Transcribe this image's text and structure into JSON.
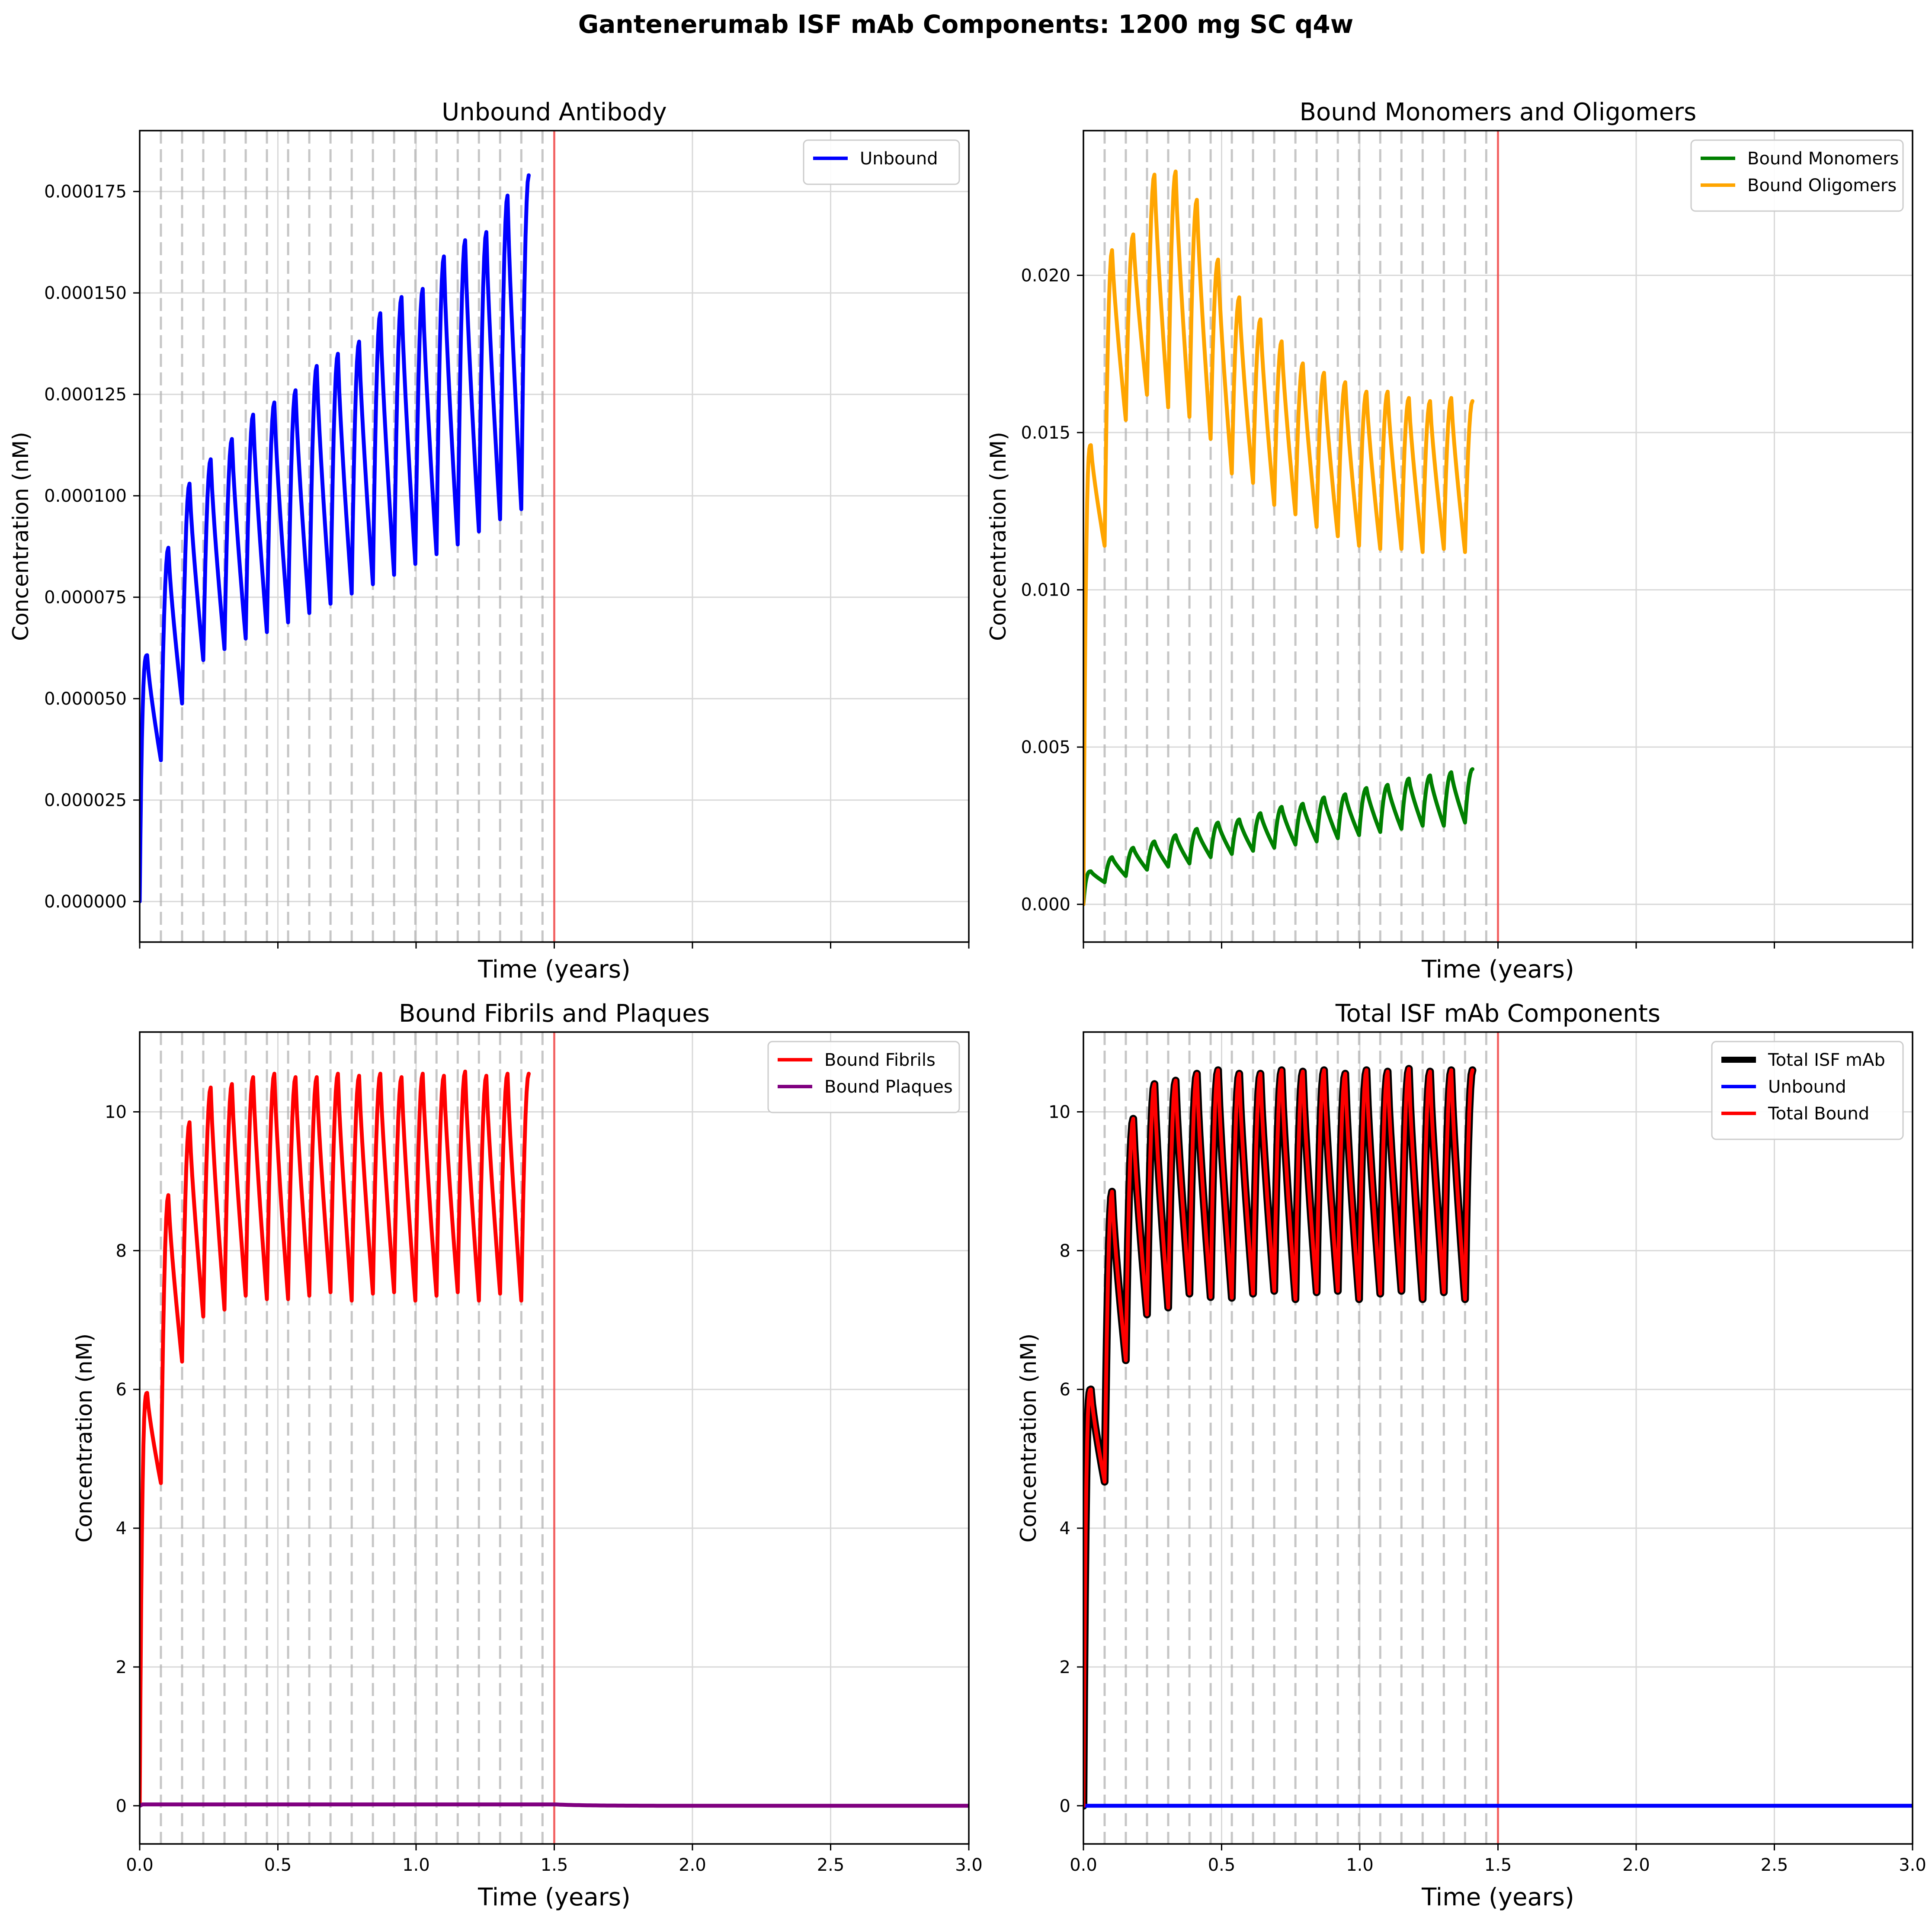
{
  "figure": {
    "title": "Gantenerumab ISF mAb Components: 1200 mg SC q4w"
  },
  "chart_data": [
    {
      "type": "line",
      "title": "Unbound Antibody",
      "xlabel": "Time (years)",
      "ylabel": "Concentration (nM)",
      "xlim": [
        0,
        3
      ],
      "ylim": [
        -1e-05,
        0.00019
      ],
      "x_ticks": [
        0,
        0.5,
        1.0,
        1.5,
        2.0,
        2.5,
        3.0
      ],
      "x_tick_labels": [],
      "y_ticks": [
        0,
        2.5e-05,
        5e-05,
        7.5e-05,
        0.0001,
        0.000125,
        0.00015,
        0.000175
      ],
      "y_tick_labels": [
        "0.000000",
        "0.000025",
        "0.000050",
        "0.000075",
        "0.000100",
        "0.000125",
        "0.000150",
        "0.000175"
      ],
      "grid": true,
      "legend_position": "top-right",
      "dose_times_years": [
        0.0767,
        0.1534,
        0.2301,
        0.3068,
        0.3836,
        0.4603,
        0.537,
        0.6137,
        0.6904,
        0.7671,
        0.8438,
        0.9205,
        0.9973,
        1.074,
        1.1507,
        1.2274,
        1.3041,
        1.3808,
        1.4575
      ],
      "treatment_end_year": 1.5,
      "series": [
        {
          "name": "Unbound",
          "color": "#0000ff",
          "kind": "pk",
          "trough": [
            3.48e-05,
            4.88e-05,
            5.95e-05,
            6.22e-05,
            6.48e-05,
            6.64e-05,
            6.88e-05,
            7.11e-05,
            7.34e-05,
            7.59e-05,
            7.82e-05,
            8.05e-05,
            8.32e-05,
            8.56e-05,
            8.8e-05,
            9.12e-05,
            9.42e-05,
            9.67e-05
          ],
          "peak": [
            8.72e-05,
            0.000103,
            0.000109,
            0.000114,
            0.00012,
            0.000123,
            0.000126,
            0.000132,
            0.000135,
            0.000138,
            0.000145,
            0.000149,
            0.000151,
            0.000159,
            0.000163,
            0.000165,
            0.000174,
            0.000179
          ],
          "first_peak": 6.07e-05,
          "end_peak": 0.000182,
          "initial": 0,
          "final": 0,
          "decay_rate": 10.5
        }
      ]
    },
    {
      "type": "line",
      "title": "Bound Monomers and Oligomers",
      "xlabel": "Time (years)",
      "ylabel": "Concentration (nM)",
      "xlim": [
        0,
        3
      ],
      "ylim": [
        -0.0012,
        0.0246
      ],
      "x_ticks": [
        0,
        0.5,
        1.0,
        1.5,
        2.0,
        2.5,
        3.0
      ],
      "x_tick_labels": [],
      "y_ticks": [
        0,
        0.005,
        0.01,
        0.015,
        0.02
      ],
      "y_tick_labels": [
        "0.000",
        "0.005",
        "0.010",
        "0.015",
        "0.020"
      ],
      "grid": true,
      "legend_position": "top-right",
      "dose_times_years": [
        0.0767,
        0.1534,
        0.2301,
        0.3068,
        0.3836,
        0.4603,
        0.537,
        0.6137,
        0.6904,
        0.7671,
        0.8438,
        0.9205,
        0.9973,
        1.074,
        1.1507,
        1.2274,
        1.3041,
        1.3808,
        1.4575
      ],
      "treatment_end_year": 1.5,
      "series": [
        {
          "name": "Bound Monomers",
          "color": "#008000",
          "kind": "pk",
          "trough": [
            0.0007,
            0.0009,
            0.0011,
            0.0012,
            0.0013,
            0.0015,
            0.0016,
            0.0017,
            0.0018,
            0.0019,
            0.002,
            0.0021,
            0.0022,
            0.0023,
            0.0024,
            0.0025,
            0.0025,
            0.0026
          ],
          "peak": [
            0.0015,
            0.0018,
            0.002,
            0.0022,
            0.0024,
            0.0026,
            0.0027,
            0.0029,
            0.0031,
            0.0032,
            0.0034,
            0.0035,
            0.0037,
            0.0038,
            0.004,
            0.0041,
            0.0042,
            0.0043
          ],
          "first_peak": 0.00105,
          "end_peak": 0.0044,
          "initial": 0,
          "final": 0,
          "decay_rate": 8.5
        },
        {
          "name": "Bound Oligomers",
          "color": "#ffa500",
          "kind": "pk",
          "trough": [
            0.0114,
            0.0154,
            0.0162,
            0.0158,
            0.0155,
            0.0148,
            0.0137,
            0.0134,
            0.0127,
            0.0124,
            0.012,
            0.0117,
            0.0114,
            0.0113,
            0.0113,
            0.0112,
            0.0113,
            0.0112
          ],
          "peak": [
            0.0208,
            0.0213,
            0.0232,
            0.0233,
            0.0224,
            0.0205,
            0.0193,
            0.0186,
            0.0179,
            0.0172,
            0.0169,
            0.0166,
            0.0163,
            0.0163,
            0.0161,
            0.016,
            0.0161,
            0.016
          ],
          "first_peak": 0.0146,
          "end_peak": 0.0162,
          "initial": 0,
          "final": 0,
          "decay_rate": 9.0
        }
      ]
    },
    {
      "type": "line",
      "title": "Bound Fibrils and Plaques",
      "xlabel": "Time (years)",
      "ylabel": "Concentration (nM)",
      "xlim": [
        0,
        3
      ],
      "ylim": [
        -0.55,
        11.15
      ],
      "x_ticks": [
        0,
        0.5,
        1.0,
        1.5,
        2.0,
        2.5,
        3.0
      ],
      "x_tick_labels": [
        "0.0",
        "0.5",
        "1.0",
        "1.5",
        "2.0",
        "2.5",
        "3.0"
      ],
      "y_ticks": [
        0,
        2,
        4,
        6,
        8,
        10
      ],
      "y_tick_labels": [
        "0",
        "2",
        "4",
        "6",
        "8",
        "10"
      ],
      "grid": true,
      "legend_position": "top-right",
      "dose_times_years": [
        0.0767,
        0.1534,
        0.2301,
        0.3068,
        0.3836,
        0.4603,
        0.537,
        0.6137,
        0.6904,
        0.7671,
        0.8438,
        0.9205,
        0.9973,
        1.074,
        1.1507,
        1.2274,
        1.3041,
        1.3808,
        1.4575
      ],
      "treatment_end_year": 1.5,
      "series": [
        {
          "name": "Bound Fibrils",
          "color": "#ff0000",
          "kind": "pk",
          "trough": [
            4.65,
            6.4,
            7.05,
            7.15,
            7.35,
            7.3,
            7.3,
            7.35,
            7.4,
            7.28,
            7.38,
            7.4,
            7.28,
            7.35,
            7.4,
            7.28,
            7.38,
            7.28
          ],
          "peak": [
            8.8,
            9.85,
            10.35,
            10.4,
            10.5,
            10.55,
            10.5,
            10.5,
            10.55,
            10.52,
            10.55,
            10.5,
            10.55,
            10.52,
            10.58,
            10.52,
            10.55,
            10.55
          ],
          "first_peak": 5.95,
          "end_peak": 10.55,
          "initial": 0,
          "final": 0,
          "decay_rate": 9.0
        },
        {
          "name": "Bound Plaques",
          "color": "#800080",
          "kind": "flat",
          "level": 0.02,
          "initial": 0,
          "final": 0,
          "decay_rate": 9.0
        }
      ]
    },
    {
      "type": "line",
      "title": "Total ISF mAb Components",
      "xlabel": "Time (years)",
      "ylabel": "Concentration (nM)",
      "xlim": [
        0,
        3
      ],
      "ylim": [
        -0.55,
        11.15
      ],
      "x_ticks": [
        0,
        0.5,
        1.0,
        1.5,
        2.0,
        2.5,
        3.0
      ],
      "x_tick_labels": [
        "0.0",
        "0.5",
        "1.0",
        "1.5",
        "2.0",
        "2.5",
        "3.0"
      ],
      "y_ticks": [
        0,
        2,
        4,
        6,
        8,
        10
      ],
      "y_tick_labels": [
        "0",
        "2",
        "4",
        "6",
        "8",
        "10"
      ],
      "grid": true,
      "legend_position": "top-right",
      "dose_times_years": [
        0.0767,
        0.1534,
        0.2301,
        0.3068,
        0.3836,
        0.4603,
        0.537,
        0.6137,
        0.6904,
        0.7671,
        0.8438,
        0.9205,
        0.9973,
        1.074,
        1.1507,
        1.2274,
        1.3041,
        1.3808,
        1.4575
      ],
      "treatment_end_year": 1.5,
      "series": [
        {
          "name": "Total ISF mAb",
          "color": "#000000",
          "kind": "pk",
          "emphasis": "thick",
          "trough": [
            4.67,
            6.42,
            7.08,
            7.18,
            7.38,
            7.33,
            7.32,
            7.38,
            7.42,
            7.3,
            7.4,
            7.42,
            7.3,
            7.38,
            7.42,
            7.3,
            7.4,
            7.3
          ],
          "peak": [
            8.85,
            9.9,
            10.4,
            10.45,
            10.55,
            10.6,
            10.55,
            10.55,
            10.6,
            10.58,
            10.6,
            10.55,
            10.6,
            10.58,
            10.62,
            10.58,
            10.6,
            10.6
          ],
          "first_peak": 6.0,
          "end_peak": 10.6,
          "initial": 0,
          "final": 0,
          "decay_rate": 9.0
        },
        {
          "name": "Unbound",
          "color": "#0000ff",
          "kind": "flat",
          "level": 0.0,
          "initial": 0,
          "final": 0,
          "decay_rate": 9.0
        },
        {
          "name": "Total Bound",
          "color": "#ff0000",
          "kind": "pk",
          "trough": [
            4.67,
            6.42,
            7.08,
            7.18,
            7.38,
            7.33,
            7.32,
            7.38,
            7.42,
            7.3,
            7.4,
            7.42,
            7.3,
            7.38,
            7.42,
            7.3,
            7.4,
            7.3
          ],
          "peak": [
            8.85,
            9.9,
            10.4,
            10.45,
            10.55,
            10.6,
            10.55,
            10.55,
            10.6,
            10.58,
            10.6,
            10.55,
            10.6,
            10.58,
            10.62,
            10.58,
            10.6,
            10.6
          ],
          "first_peak": 6.0,
          "end_peak": 10.6,
          "initial": 0,
          "final": 0,
          "decay_rate": 9.0
        }
      ]
    }
  ]
}
